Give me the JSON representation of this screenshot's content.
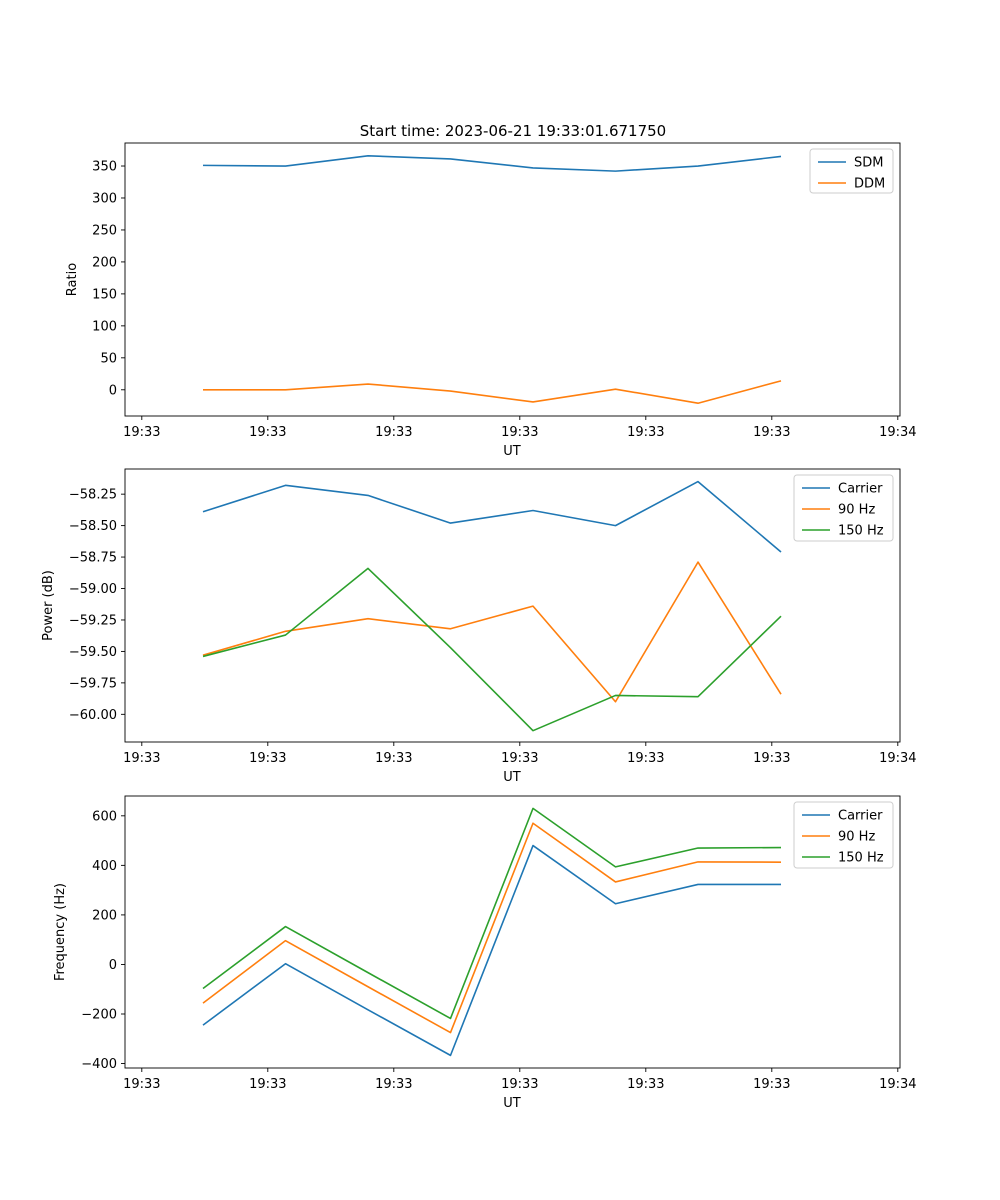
{
  "figure_title": "Start time: 2023-06-21 19:33:01.671750",
  "colors": {
    "c0": "#1f77b4",
    "c1": "#ff7f0e",
    "c2": "#2ca02c"
  },
  "chart_data": [
    {
      "type": "line",
      "xlabel": "UT",
      "ylabel": "Ratio",
      "x_tick_labels": [
        "19:33",
        "19:33",
        "19:33",
        "19:33",
        "19:33",
        "19:33",
        "19:34"
      ],
      "y_ticks": [
        "0",
        "50",
        "100",
        "150",
        "200",
        "250",
        "300",
        "350"
      ],
      "ylim": [
        -41,
        386
      ],
      "legend_position": "top-right",
      "grid": false,
      "series": [
        {
          "name": "SDM",
          "color": "#1f77b4",
          "values": [
            351,
            350,
            366,
            361,
            347,
            342,
            350,
            365
          ]
        },
        {
          "name": "DDM",
          "color": "#ff7f0e",
          "values": [
            0,
            0,
            9,
            -2,
            -19,
            1,
            -21,
            14
          ]
        }
      ]
    },
    {
      "type": "line",
      "xlabel": "UT",
      "ylabel": "Power (dB)",
      "x_tick_labels": [
        "19:33",
        "19:33",
        "19:33",
        "19:33",
        "19:33",
        "19:33",
        "19:34"
      ],
      "y_ticks": [
        "−60.00",
        "−59.75",
        "−59.50",
        "−59.25",
        "−59.00",
        "−58.75",
        "−58.50",
        "−58.25"
      ],
      "ylim": [
        -60.22,
        -58.05
      ],
      "legend_position": "top-right",
      "grid": false,
      "series": [
        {
          "name": "Carrier",
          "color": "#1f77b4",
          "values": [
            -58.39,
            -58.18,
            -58.26,
            -58.48,
            -58.38,
            -58.5,
            -58.15,
            -58.71
          ]
        },
        {
          "name": "90 Hz",
          "color": "#ff7f0e",
          "values": [
            -59.53,
            -59.34,
            -59.24,
            -59.32,
            -59.14,
            -59.9,
            -58.79,
            -59.84
          ]
        },
        {
          "name": "150 Hz",
          "color": "#2ca02c",
          "values": [
            -59.54,
            -59.37,
            -58.84,
            -59.47,
            -60.13,
            -59.85,
            -59.86,
            -59.22
          ]
        }
      ]
    },
    {
      "type": "line",
      "xlabel": "UT",
      "ylabel": "Frequency (Hz)",
      "x_tick_labels": [
        "19:33",
        "19:33",
        "19:33",
        "19:33",
        "19:33",
        "19:33",
        "19:34"
      ],
      "y_ticks": [
        "−400",
        "−200",
        "0",
        "200",
        "400",
        "600"
      ],
      "ylim": [
        -418,
        680
      ],
      "legend_position": "top-right",
      "grid": false,
      "series": [
        {
          "name": "Carrier",
          "color": "#1f77b4",
          "values": [
            -245,
            3,
            -183,
            -367,
            480,
            245,
            323,
            323
          ]
        },
        {
          "name": "90 Hz",
          "color": "#ff7f0e",
          "values": [
            -156,
            96,
            -90,
            -275,
            570,
            333,
            414,
            413
          ]
        },
        {
          "name": "150 Hz",
          "color": "#2ca02c",
          "values": [
            -97,
            153,
            -33,
            -218,
            630,
            394,
            470,
            472
          ]
        }
      ]
    }
  ]
}
